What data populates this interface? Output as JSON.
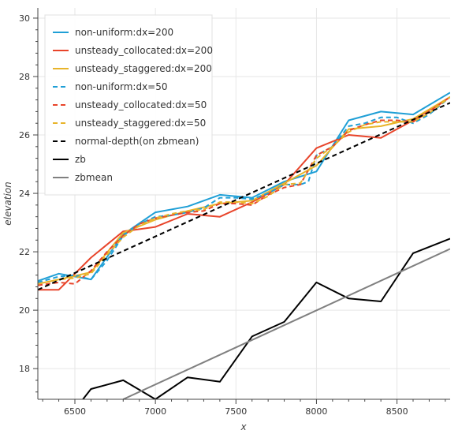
{
  "chart_data": {
    "type": "line",
    "xlabel": "x",
    "ylabel": "elevation",
    "xlim": [
      6270,
      8830
    ],
    "ylim": [
      16.95,
      30.35
    ],
    "grid": true,
    "legend_position": "top-left",
    "x_ticks": [
      6500,
      7000,
      7500,
      8000,
      8500
    ],
    "y_ticks": [
      18,
      20,
      22,
      24,
      26,
      28,
      30
    ],
    "series": [
      {
        "name": "non-uniform:dx=200",
        "color": "#1f9fd6",
        "dash": "solid",
        "x": [
          6270,
          6400,
          6600,
          6800,
          7000,
          7200,
          7400,
          7600,
          7800,
          8000,
          8200,
          8400,
          8600,
          8830
        ],
        "y": [
          21.0,
          21.25,
          21.05,
          22.6,
          23.35,
          23.55,
          23.95,
          23.85,
          24.4,
          24.75,
          26.5,
          26.8,
          26.7,
          27.45
        ]
      },
      {
        "name": "unsteady_collocated:dx=200",
        "color": "#e8442a",
        "dash": "solid",
        "x": [
          6270,
          6400,
          6600,
          6800,
          7000,
          7200,
          7400,
          7600,
          7800,
          8000,
          8200,
          8400,
          8600,
          8830
        ],
        "y": [
          20.7,
          20.7,
          21.8,
          22.7,
          22.85,
          23.3,
          23.2,
          23.7,
          24.3,
          25.55,
          26.0,
          25.9,
          26.5,
          27.3
        ]
      },
      {
        "name": "unsteady_staggered:dx=200",
        "color": "#e8b42a",
        "dash": "solid",
        "x": [
          6270,
          6400,
          6600,
          6800,
          7000,
          7200,
          7400,
          7600,
          7800,
          8000,
          8200,
          8400,
          8600,
          8830
        ],
        "y": [
          20.9,
          21.05,
          21.3,
          22.65,
          23.1,
          23.4,
          23.65,
          23.75,
          24.35,
          24.95,
          26.2,
          26.3,
          26.55,
          27.3
        ]
      },
      {
        "name": "non-uniform:dx=50",
        "color": "#1f9fd6",
        "dash": "dashed",
        "x": [
          6270,
          6400,
          6500,
          6600,
          6700,
          6800,
          6900,
          7000,
          7100,
          7200,
          7300,
          7400,
          7500,
          7600,
          7700,
          7800,
          7900,
          7950,
          8000,
          8100,
          8200,
          8300,
          8400,
          8500,
          8600,
          8700,
          8830
        ],
        "y": [
          20.95,
          21.15,
          21.2,
          21.05,
          21.7,
          22.55,
          22.95,
          23.2,
          23.25,
          23.35,
          23.5,
          23.85,
          23.85,
          23.8,
          24.0,
          24.3,
          24.3,
          24.4,
          25.3,
          25.6,
          26.3,
          26.4,
          26.6,
          26.6,
          26.4,
          26.7,
          27.3
        ]
      },
      {
        "name": "unsteady_collocated:dx=50",
        "color": "#e8442a",
        "dash": "dashed",
        "x": [
          6270,
          6400,
          6500,
          6600,
          6700,
          6800,
          6900,
          7000,
          7100,
          7200,
          7300,
          7400,
          7500,
          7600,
          7700,
          7800,
          7900,
          8000,
          8100,
          8200,
          8300,
          8400,
          8500,
          8600,
          8700,
          8830
        ],
        "y": [
          20.85,
          20.95,
          20.9,
          21.35,
          22.0,
          22.55,
          22.95,
          23.15,
          23.25,
          23.35,
          23.4,
          23.65,
          23.65,
          23.6,
          23.95,
          24.2,
          24.3,
          25.3,
          25.6,
          26.15,
          26.35,
          26.5,
          26.5,
          26.45,
          26.8,
          27.3
        ]
      },
      {
        "name": "unsteady_staggered:dx=50",
        "color": "#e8b42a",
        "dash": "dashed",
        "x": [
          6270,
          6400,
          6500,
          6600,
          6700,
          6800,
          6900,
          7000,
          7100,
          7200,
          7300,
          7400,
          7500,
          7600,
          7700,
          7800,
          7900,
          8000,
          8100,
          8200,
          8300,
          8400,
          8500,
          8600,
          8700,
          8830
        ],
        "y": [
          20.9,
          21.05,
          21.1,
          21.25,
          21.9,
          22.5,
          22.9,
          23.15,
          23.3,
          23.4,
          23.45,
          23.7,
          23.7,
          23.65,
          23.9,
          24.3,
          24.35,
          25.2,
          25.6,
          26.1,
          26.35,
          26.45,
          26.45,
          26.45,
          26.75,
          27.3
        ]
      },
      {
        "name": "normal-depth(on zbmean)",
        "color": "#000000",
        "dash": "dashed",
        "x": [
          6270,
          8830
        ],
        "y": [
          20.7,
          27.1
        ]
      },
      {
        "name": "zb",
        "color": "#000000",
        "dash": "solid",
        "x": [
          6550,
          6600,
          6800,
          7000,
          7200,
          7400,
          7600,
          7800,
          8000,
          8200,
          8400,
          8600,
          8830
        ],
        "y": [
          16.95,
          17.3,
          17.6,
          16.95,
          17.7,
          17.55,
          19.1,
          19.6,
          20.95,
          20.4,
          20.3,
          21.95,
          22.45
        ]
      },
      {
        "name": "zbmean",
        "color": "#808080",
        "dash": "solid",
        "x": [
          6800,
          8830
        ],
        "y": [
          16.95,
          22.1
        ]
      }
    ]
  }
}
